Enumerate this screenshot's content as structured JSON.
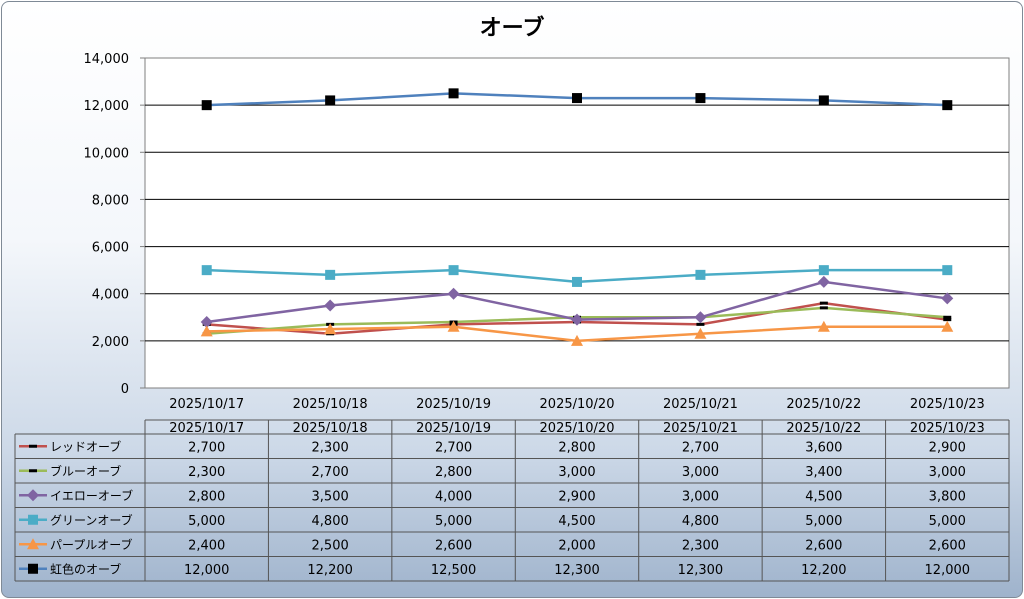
{
  "chart_data": {
    "type": "line",
    "title": "オーブ",
    "xlabel": "",
    "ylabel": "",
    "ylim": [
      0,
      14000
    ],
    "yticks": [
      "0",
      "2,000",
      "4,000",
      "6,000",
      "8,000",
      "10,000",
      "12,000",
      "14,000"
    ],
    "grid": true,
    "legend": "data-table",
    "categories": [
      "2025/10/17",
      "2025/10/18",
      "2025/10/19",
      "2025/10/20",
      "2025/10/21",
      "2025/10/22",
      "2025/10/23"
    ],
    "series": [
      {
        "name": "レッドオーブ",
        "color": "#c0504d",
        "marker": "dash",
        "values": [
          2700,
          2300,
          2700,
          2800,
          2700,
          3600,
          2900
        ],
        "labels": [
          "2,700",
          "2,300",
          "2,700",
          "2,800",
          "2,700",
          "3,600",
          "2,900"
        ]
      },
      {
        "name": "ブルーオーブ",
        "color": "#9bbb59",
        "marker": "dash",
        "values": [
          2300,
          2700,
          2800,
          3000,
          3000,
          3400,
          3000
        ],
        "labels": [
          "2,300",
          "2,700",
          "2,800",
          "3,000",
          "3,000",
          "3,400",
          "3,000"
        ]
      },
      {
        "name": "イエローオーブ",
        "color": "#8064a2",
        "marker": "diamond",
        "values": [
          2800,
          3500,
          4000,
          2900,
          3000,
          4500,
          3800
        ],
        "labels": [
          "2,800",
          "3,500",
          "4,000",
          "2,900",
          "3,000",
          "4,500",
          "3,800"
        ]
      },
      {
        "name": "グリーンオーブ",
        "color": "#4bacc6",
        "marker": "square",
        "values": [
          5000,
          4800,
          5000,
          4500,
          4800,
          5000,
          5000
        ],
        "labels": [
          "5,000",
          "4,800",
          "5,000",
          "4,500",
          "4,800",
          "5,000",
          "5,000"
        ]
      },
      {
        "name": "パープルオーブ",
        "color": "#f79646",
        "marker": "triangle",
        "values": [
          2400,
          2500,
          2600,
          2000,
          2300,
          2600,
          2600
        ],
        "labels": [
          "2,400",
          "2,500",
          "2,600",
          "2,000",
          "2,300",
          "2,600",
          "2,600"
        ]
      },
      {
        "name": "虹色のオーブ",
        "color": "#4f81bd",
        "marker": "black-square",
        "values": [
          12000,
          12200,
          12500,
          12300,
          12300,
          12200,
          12000
        ],
        "labels": [
          "12,000",
          "12,200",
          "12,500",
          "12,300",
          "12,300",
          "12,200",
          "12,000"
        ]
      }
    ]
  }
}
